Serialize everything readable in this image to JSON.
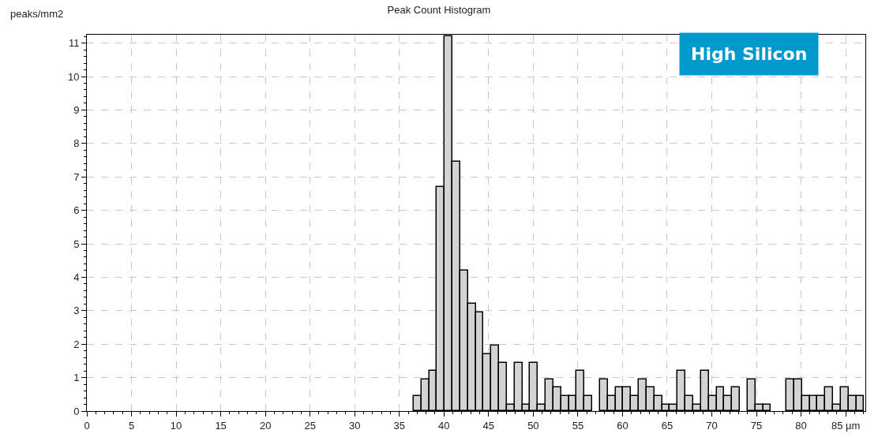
{
  "chart_data": {
    "type": "histogram",
    "title": "Peak Count Histogram",
    "ylabel": "peaks/mm2",
    "annotations": [
      "High Silicon"
    ],
    "bins": [
      36.6,
      37.47,
      38.34,
      39.21,
      40.08,
      40.95,
      41.82,
      42.69,
      43.56,
      44.43,
      45.3,
      46.17,
      47.04,
      47.91,
      48.78,
      49.65,
      50.52,
      51.39,
      52.26,
      53.13,
      54.0,
      54.87,
      55.74,
      56.61,
      57.48,
      58.35,
      59.22,
      60.09,
      60.96,
      61.83,
      62.7,
      63.57,
      64.44,
      65.31,
      66.18,
      67.05,
      67.92,
      68.79,
      69.66,
      70.53,
      71.4,
      72.27,
      73.14,
      74.01,
      74.88,
      75.75,
      76.62,
      77.49,
      78.36,
      79.23,
      80.1,
      80.97,
      81.84,
      82.71,
      83.58,
      84.45,
      85.32,
      86.19,
      87.06
    ],
    "values": [
      0.45,
      0.95,
      1.2,
      6.7,
      11.2,
      7.45,
      4.2,
      3.2,
      2.95,
      1.7,
      1.95,
      1.45,
      0.2,
      1.45,
      0.2,
      1.45,
      0.2,
      0.95,
      0.7,
      0.45,
      0.45,
      1.2,
      0.45,
      0,
      0.95,
      0.45,
      0.7,
      0.7,
      0.45,
      0.95,
      0.7,
      0.45,
      0.2,
      0.2,
      1.2,
      0.45,
      0.2,
      1.2,
      0.45,
      0.7,
      0.45,
      0.7,
      0,
      0.95,
      0.2,
      0.2,
      0,
      0,
      0.95,
      0.95,
      0.45,
      0.45,
      0.45,
      0.7,
      0.2,
      0.7,
      0.45,
      0.45
    ],
    "color": "#d3d3d3",
    "xlim": [
      0,
      87.2
    ],
    "xticks": [
      0,
      5,
      10,
      15,
      20,
      25,
      30,
      35,
      40,
      45,
      50,
      55,
      60,
      65,
      70,
      75,
      80,
      {
        "value": 85,
        "label": "85 µm"
      }
    ],
    "ylim": [
      0,
      11.25
    ],
    "yticks": [
      0,
      1,
      2,
      3,
      4,
      5,
      6,
      7,
      8,
      9,
      10,
      11
    ],
    "grid": true
  }
}
